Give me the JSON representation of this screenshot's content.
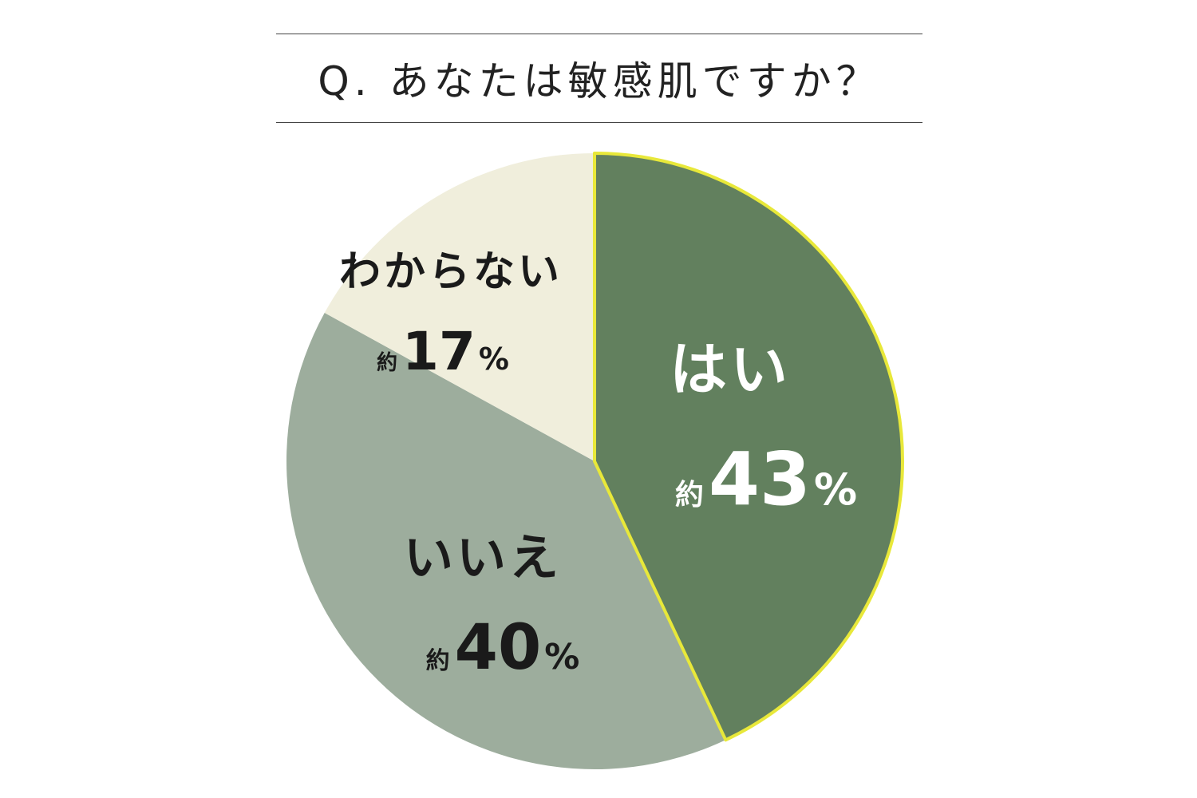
{
  "title": "Q. あなたは敏感肌ですか？",
  "colors": {
    "yes": "#62805e",
    "no": "#9dad9d",
    "unknown": "#f0eedc",
    "yes_outline": "#e8e83a",
    "dark_text": "#1a1a1a",
    "light_text": "#ffffff"
  },
  "chart_data": {
    "type": "pie",
    "title": "Q. あなたは敏感肌ですか？",
    "slices": [
      {
        "label": "はい",
        "value": 43,
        "value_text": "43",
        "prefix": "約",
        "unit": "%"
      },
      {
        "label": "いいえ",
        "value": 40,
        "value_text": "40",
        "prefix": "約",
        "unit": "%"
      },
      {
        "label": "わからない",
        "value": 17,
        "value_text": "17",
        "prefix": "約",
        "unit": "%"
      }
    ]
  }
}
